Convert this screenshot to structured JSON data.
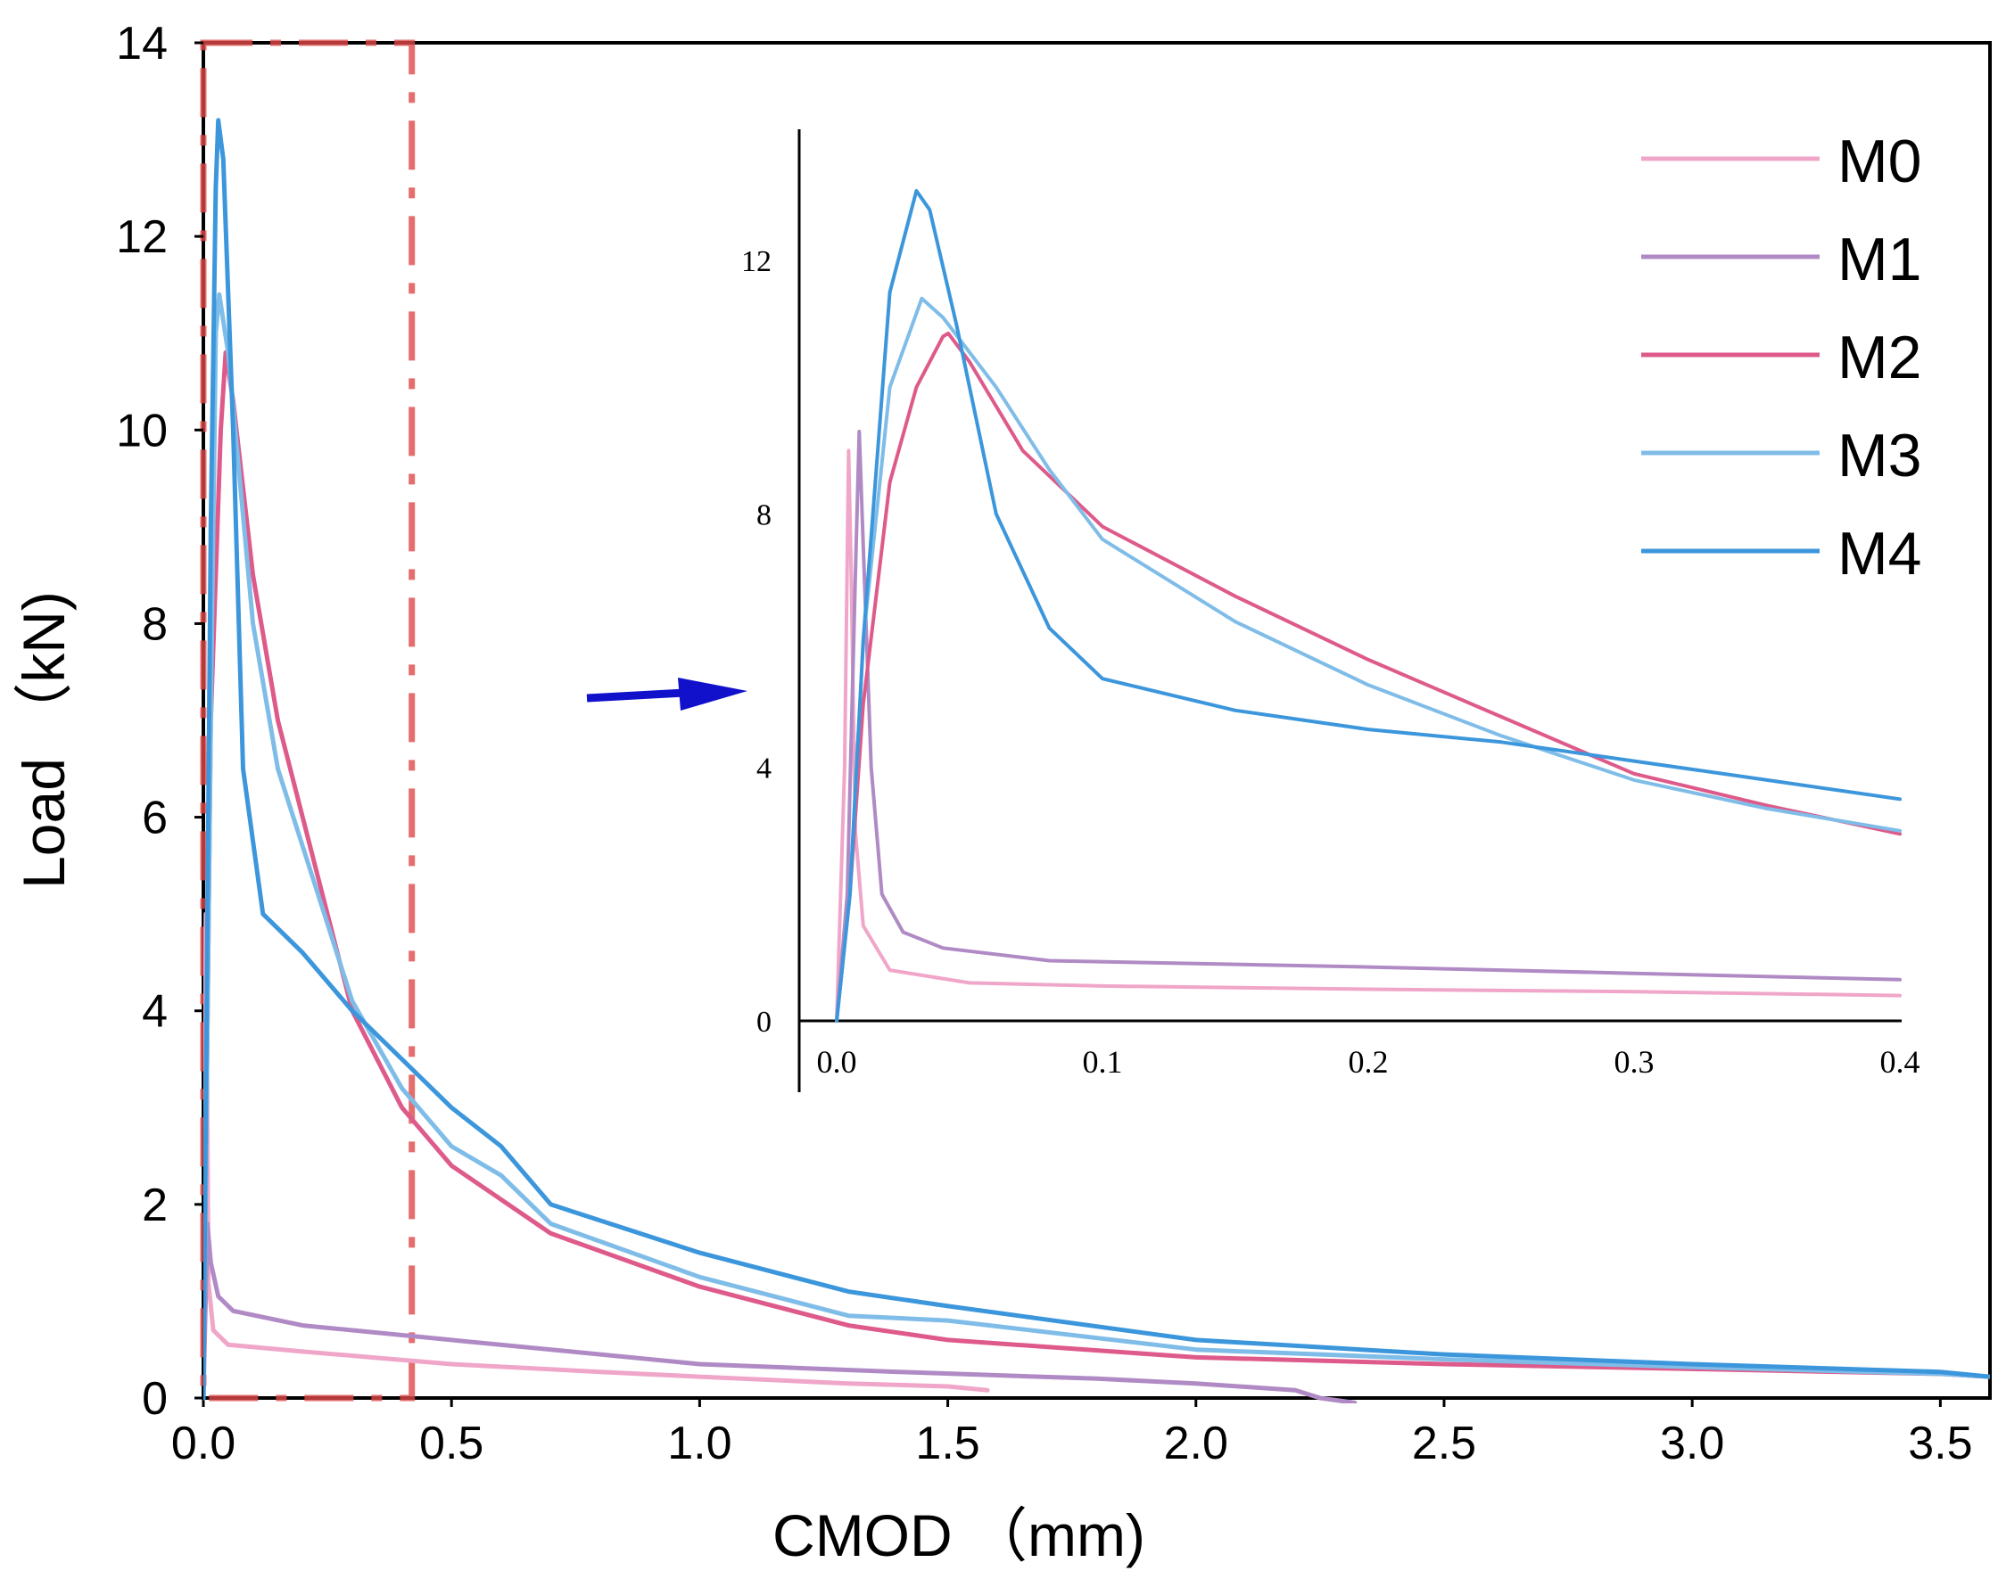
{
  "chart_data": [
    {
      "type": "line",
      "role": "main",
      "title": "",
      "xlabel": "CMOD （mm)",
      "ylabel": "Load （kN)",
      "xlim": [
        0,
        3.6
      ],
      "ylim": [
        0,
        14
      ],
      "xticks": [
        "0.0",
        "0.5",
        "1.0",
        "1.5",
        "2.0",
        "2.5",
        "3.0",
        "3.5"
      ],
      "yticks": [
        "0",
        "2",
        "4",
        "6",
        "8",
        "10",
        "12",
        "14"
      ],
      "highlight_region": {
        "x": [
          0,
          0.42
        ],
        "y": [
          0,
          14
        ]
      },
      "series": [
        {
          "name": "M0",
          "color": "#f0a6c8",
          "points": [
            [
              0,
              0
            ],
            [
              0.005,
              5
            ],
            [
              0.01,
              1.2
            ],
            [
              0.02,
              0.7
            ],
            [
              0.05,
              0.55
            ],
            [
              0.2,
              0.48
            ],
            [
              0.5,
              0.35
            ],
            [
              0.8,
              0.27
            ],
            [
              1.0,
              0.22
            ],
            [
              1.3,
              0.15
            ],
            [
              1.5,
              0.12
            ],
            [
              1.58,
              0.08
            ]
          ]
        },
        {
          "name": "M1",
          "color": "#b08ac4",
          "points": [
            [
              0,
              0
            ],
            [
              0.008,
              1.8
            ],
            [
              0.015,
              1.4
            ],
            [
              0.03,
              1.05
            ],
            [
              0.06,
              0.9
            ],
            [
              0.2,
              0.75
            ],
            [
              0.5,
              0.6
            ],
            [
              0.8,
              0.45
            ],
            [
              1.0,
              0.35
            ],
            [
              1.4,
              0.27
            ],
            [
              1.8,
              0.2
            ],
            [
              2.0,
              0.15
            ],
            [
              2.2,
              0.08
            ],
            [
              2.25,
              0.0
            ],
            [
              2.32,
              -0.05
            ]
          ]
        },
        {
          "name": "M2",
          "color": "#de5a8a",
          "points": [
            [
              0,
              0
            ],
            [
              0.015,
              7
            ],
            [
              0.035,
              10
            ],
            [
              0.045,
              10.8
            ],
            [
              0.06,
              10.3
            ],
            [
              0.1,
              8.5
            ],
            [
              0.15,
              7
            ],
            [
              0.2,
              6
            ],
            [
              0.3,
              4
            ],
            [
              0.4,
              3
            ],
            [
              0.5,
              2.4
            ],
            [
              0.7,
              1.7
            ],
            [
              1.0,
              1.15
            ],
            [
              1.3,
              0.75
            ],
            [
              1.5,
              0.6
            ],
            [
              2.0,
              0.42
            ],
            [
              2.5,
              0.35
            ],
            [
              3.0,
              0.3
            ],
            [
              3.5,
              0.25
            ],
            [
              3.6,
              0.22
            ]
          ]
        },
        {
          "name": "M3",
          "color": "#7fbde8",
          "points": [
            [
              0,
              0
            ],
            [
              0.015,
              7
            ],
            [
              0.025,
              11
            ],
            [
              0.032,
              11.4
            ],
            [
              0.05,
              10.8
            ],
            [
              0.1,
              8
            ],
            [
              0.15,
              6.5
            ],
            [
              0.2,
              5.7
            ],
            [
              0.3,
              4.1
            ],
            [
              0.4,
              3.2
            ],
            [
              0.5,
              2.6
            ],
            [
              0.6,
              2.3
            ],
            [
              0.7,
              1.8
            ],
            [
              1.0,
              1.25
            ],
            [
              1.3,
              0.85
            ],
            [
              1.5,
              0.8
            ],
            [
              2.0,
              0.5
            ],
            [
              2.5,
              0.4
            ],
            [
              3.0,
              0.32
            ],
            [
              3.5,
              0.25
            ],
            [
              3.6,
              0.22
            ]
          ]
        },
        {
          "name": "M4",
          "color": "#3c96dc",
          "points": [
            [
              0,
              0
            ],
            [
              0.015,
              9
            ],
            [
              0.025,
              12.5
            ],
            [
              0.03,
              13.2
            ],
            [
              0.04,
              12.8
            ],
            [
              0.06,
              10
            ],
            [
              0.08,
              6.5
            ],
            [
              0.12,
              5.0
            ],
            [
              0.2,
              4.6
            ],
            [
              0.3,
              4.0
            ],
            [
              0.4,
              3.5
            ],
            [
              0.5,
              3.0
            ],
            [
              0.6,
              2.6
            ],
            [
              0.7,
              2.0
            ],
            [
              1.0,
              1.5
            ],
            [
              1.3,
              1.1
            ],
            [
              1.5,
              0.95
            ],
            [
              2.0,
              0.6
            ],
            [
              2.5,
              0.45
            ],
            [
              3.0,
              0.35
            ],
            [
              3.5,
              0.27
            ],
            [
              3.6,
              0.22
            ]
          ]
        }
      ]
    },
    {
      "type": "line",
      "role": "inset",
      "title": "",
      "xlabel": "",
      "ylabel": "",
      "xlim": [
        0,
        0.4
      ],
      "ylim": [
        0,
        14
      ],
      "xticks": [
        "0.0",
        "0.1",
        "0.2",
        "0.3",
        "0.4"
      ],
      "yticks": [
        "0",
        "4",
        "8",
        "12"
      ],
      "series": [
        {
          "name": "M0",
          "color": "#f0a6c8",
          "points": [
            [
              0,
              0
            ],
            [
              0.003,
              4
            ],
            [
              0.0045,
              9
            ],
            [
              0.0055,
              7
            ],
            [
              0.007,
              3
            ],
            [
              0.01,
              1.5
            ],
            [
              0.02,
              0.8
            ],
            [
              0.05,
              0.6
            ],
            [
              0.1,
              0.55
            ],
            [
              0.2,
              0.5
            ],
            [
              0.3,
              0.46
            ],
            [
              0.4,
              0.4
            ]
          ]
        },
        {
          "name": "M1",
          "color": "#b08ac4",
          "points": [
            [
              0,
              0
            ],
            [
              0.004,
              2
            ],
            [
              0.007,
              7
            ],
            [
              0.0085,
              9.3
            ],
            [
              0.01,
              7.5
            ],
            [
              0.013,
              4
            ],
            [
              0.017,
              2
            ],
            [
              0.025,
              1.4
            ],
            [
              0.04,
              1.15
            ],
            [
              0.08,
              0.95
            ],
            [
              0.2,
              0.85
            ],
            [
              0.3,
              0.75
            ],
            [
              0.4,
              0.65
            ]
          ]
        },
        {
          "name": "M2",
          "color": "#de5a8a",
          "points": [
            [
              0,
              0
            ],
            [
              0.005,
              2
            ],
            [
              0.01,
              5
            ],
            [
              0.02,
              8.5
            ],
            [
              0.03,
              10
            ],
            [
              0.04,
              10.8
            ],
            [
              0.042,
              10.85
            ],
            [
              0.05,
              10.4
            ],
            [
              0.07,
              9
            ],
            [
              0.1,
              7.8
            ],
            [
              0.15,
              6.7
            ],
            [
              0.2,
              5.7
            ],
            [
              0.25,
              4.8
            ],
            [
              0.3,
              3.9
            ],
            [
              0.35,
              3.4
            ],
            [
              0.4,
              2.95
            ]
          ]
        },
        {
          "name": "M3",
          "color": "#7fbde8",
          "points": [
            [
              0,
              0
            ],
            [
              0.005,
              2
            ],
            [
              0.01,
              6
            ],
            [
              0.02,
              10
            ],
            [
              0.032,
              11.4
            ],
            [
              0.04,
              11.1
            ],
            [
              0.06,
              10
            ],
            [
              0.08,
              8.7
            ],
            [
              0.1,
              7.6
            ],
            [
              0.15,
              6.3
            ],
            [
              0.2,
              5.3
            ],
            [
              0.25,
              4.5
            ],
            [
              0.3,
              3.8
            ],
            [
              0.35,
              3.35
            ],
            [
              0.4,
              3.0
            ]
          ]
        },
        {
          "name": "M4",
          "color": "#3c96dc",
          "points": [
            [
              0,
              0
            ],
            [
              0.005,
              2
            ],
            [
              0.01,
              6
            ],
            [
              0.02,
              11.5
            ],
            [
              0.03,
              13.1
            ],
            [
              0.035,
              12.8
            ],
            [
              0.045,
              11
            ],
            [
              0.06,
              8
            ],
            [
              0.08,
              6.2
            ],
            [
              0.1,
              5.4
            ],
            [
              0.15,
              4.9
            ],
            [
              0.2,
              4.6
            ],
            [
              0.25,
              4.4
            ],
            [
              0.3,
              4.1
            ],
            [
              0.35,
              3.8
            ],
            [
              0.4,
              3.5
            ]
          ]
        }
      ]
    }
  ]
}
